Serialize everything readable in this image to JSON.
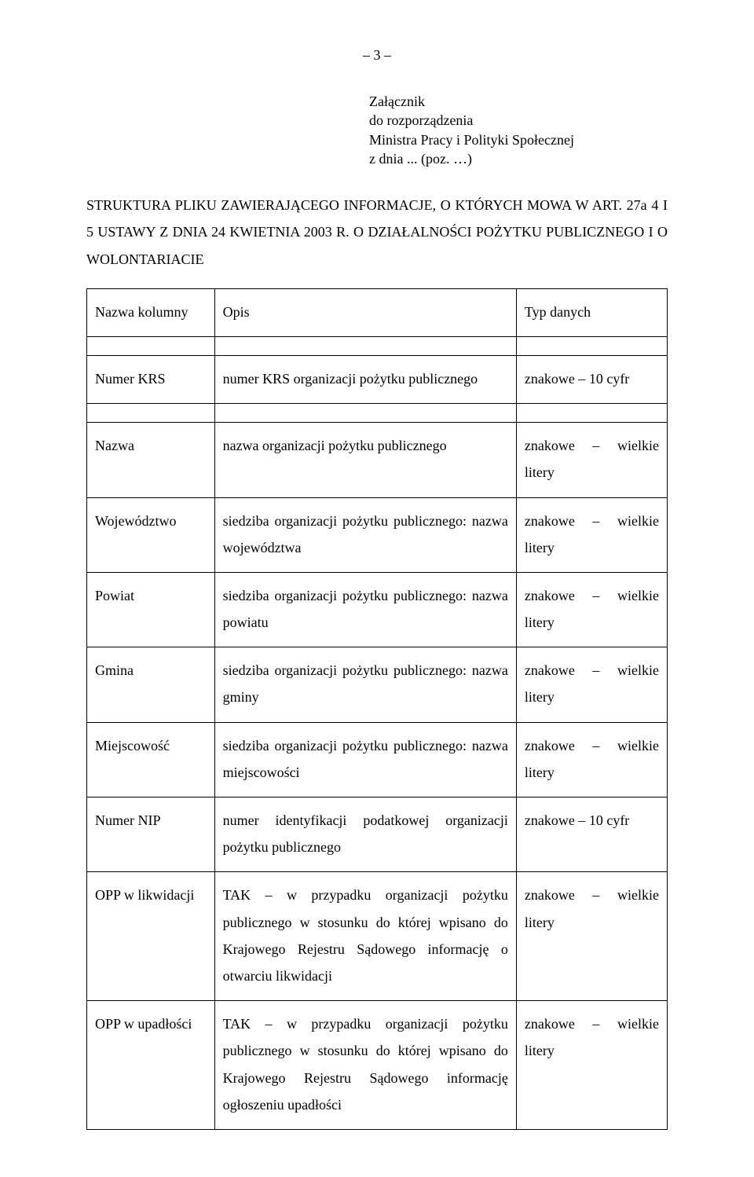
{
  "page_number": "– 3 –",
  "attachment": {
    "line1": "Załącznik",
    "line2": "do rozporządzenia",
    "line3": "Ministra Pracy i Polityki Społecznej",
    "line4": "z dnia ... (poz. …)"
  },
  "heading": "STRUKTURA PLIKU ZAWIERAJĄCEGO INFORMACJE, O KTÓRYCH MOWA W ART. 27a 4 I 5 USTAWY Z DNIA 24 KWIETNIA 2003 R. O DZIAŁALNOŚCI POŻYTKU PUBLICZNEGO I O WOLONTARIACIE",
  "header": {
    "c1": "Nazwa kolumny",
    "c2": "Opis",
    "c3": "Typ danych"
  },
  "rows": {
    "r1": {
      "c1": "Numer KRS",
      "c2": "numer KRS organizacji pożytku publicznego",
      "c3": "znakowe – 10 cyfr"
    },
    "r2": {
      "c1": "Nazwa",
      "c2": "nazwa organizacji pożytku publicznego",
      "c3": "znakowe – wielkie litery"
    },
    "r3": {
      "c1": "Województwo",
      "c2": "siedziba organizacji pożytku publicznego: nazwa województwa",
      "c3": "znakowe – wielkie litery"
    },
    "r4": {
      "c1": "Powiat",
      "c2": "siedziba organizacji pożytku publicznego: nazwa powiatu",
      "c3": "znakowe – wielkie litery"
    },
    "r5": {
      "c1": "Gmina",
      "c2": "siedziba organizacji pożytku publicznego: nazwa gminy",
      "c3": "znakowe – wielkie litery"
    },
    "r6": {
      "c1": "Miejscowość",
      "c2": "siedziba organizacji pożytku publicznego: nazwa miejscowości",
      "c3": "znakowe – wielkie litery"
    },
    "r7": {
      "c1": "Numer NIP",
      "c2": "numer identyfikacji podatkowej organizacji pożytku publicznego",
      "c3": "znakowe – 10 cyfr"
    },
    "r8": {
      "c1": "OPP w likwidacji",
      "c2": "TAK – w przypadku organizacji pożytku publicznego w stosunku do której wpisano do Krajowego Rejestru Sądowego informację o otwarciu likwidacji",
      "c3": "znakowe – wielkie litery"
    },
    "r9": {
      "c1": "OPP w upadłości",
      "c2": "TAK – w przypadku organizacji pożytku publicznego w stosunku do której wpisano do Krajowego Rejestru Sądowego informację ogłoszeniu upadłości",
      "c3": "znakowe – wielkie litery"
    }
  }
}
